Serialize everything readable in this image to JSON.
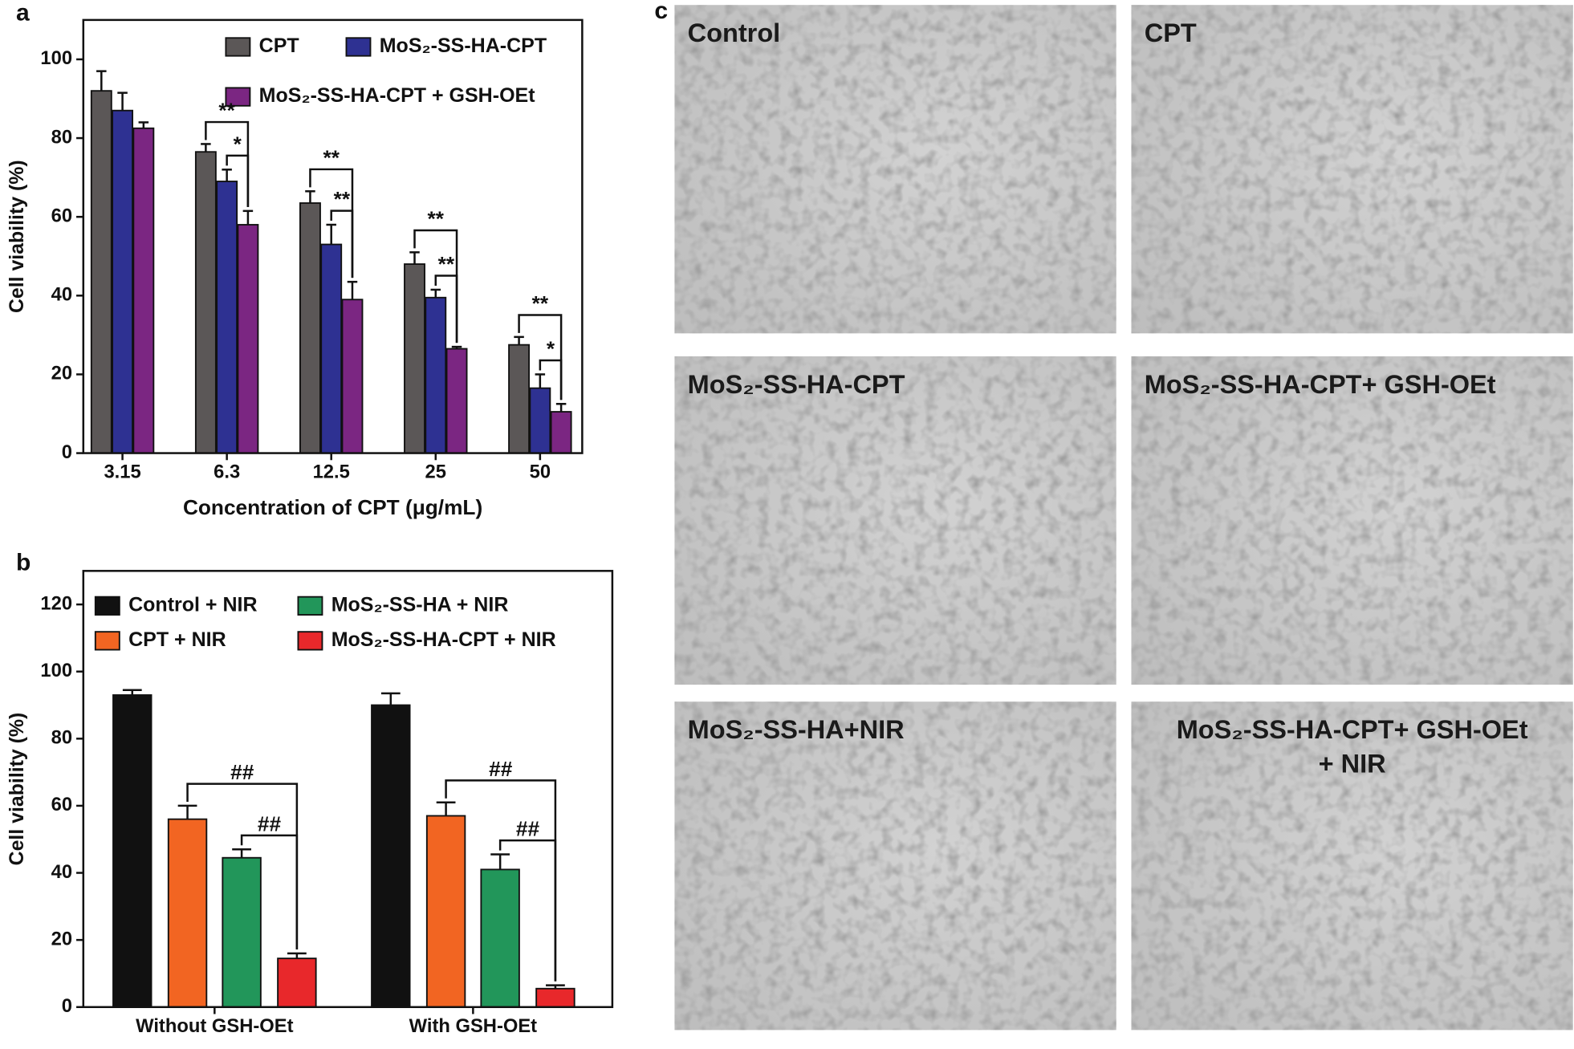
{
  "chart_data": [
    {
      "type": "bar",
      "panel": "a",
      "ylabel": "Cell viability (%)",
      "xlabel": "Concentration of CPT (μg/mL)",
      "categories": [
        "3.15",
        "6.3",
        "12.5",
        "25",
        "50"
      ],
      "series": [
        {
          "name": "CPT",
          "color": "#5b5757",
          "values": [
            92,
            76.5,
            63.5,
            48,
            27.5
          ],
          "errors": [
            5,
            2,
            3,
            3,
            2
          ]
        },
        {
          "name": "MoS₂-SS-HA-CPT",
          "color": "#2e3192",
          "values": [
            87,
            69,
            53,
            39.5,
            16.5
          ],
          "errors": [
            4.5,
            3,
            5,
            2,
            3.5
          ]
        },
        {
          "name": "MoS₂-SS-HA-CPT + GSH-OEt",
          "color": "#7b2682",
          "values": [
            82.5,
            58,
            39,
            26.5,
            10.5
          ],
          "errors": [
            1.5,
            3.5,
            4.5,
            0.5,
            2
          ]
        }
      ],
      "ylim": [
        0,
        110
      ],
      "yticks": [
        0,
        20,
        40,
        60,
        80,
        100
      ],
      "annotations": [
        "**",
        "*",
        "**",
        "**",
        "**",
        "**",
        "**",
        "*"
      ]
    },
    {
      "type": "bar",
      "panel": "b",
      "ylabel": "Cell viability (%)",
      "categories": [
        "Without GSH-OEt",
        "With GSH-OEt"
      ],
      "series": [
        {
          "name": "Control + NIR",
          "color": "#111111",
          "values": [
            93,
            90
          ],
          "errors": [
            1.5,
            3.5
          ]
        },
        {
          "name": "CPT + NIR",
          "color": "#f26522",
          "values": [
            56,
            57
          ],
          "errors": [
            4,
            4
          ]
        },
        {
          "name": "MoS₂-SS-HA + NIR",
          "color": "#22965a",
          "values": [
            44.5,
            41
          ],
          "errors": [
            2.5,
            4.5
          ]
        },
        {
          "name": "MoS₂-SS-HA-CPT + NIR",
          "color": "#e8282b",
          "values": [
            14.5,
            5.5
          ],
          "errors": [
            1.5,
            1
          ]
        }
      ],
      "ylim": [
        0,
        130
      ],
      "yticks": [
        0,
        20,
        40,
        60,
        80,
        100,
        120
      ],
      "annotations": [
        "##",
        "##",
        "##",
        "##"
      ]
    }
  ],
  "panel_c": {
    "label": "c",
    "images": [
      {
        "caption": [
          "Control"
        ]
      },
      {
        "caption": [
          "CPT"
        ]
      },
      {
        "caption": [
          "MoS₂-SS-HA-CPT"
        ]
      },
      {
        "caption": [
          "MoS₂-SS-HA-CPT+ GSH-OEt"
        ]
      },
      {
        "caption": [
          "MoS₂-SS-HA+NIR"
        ]
      },
      {
        "caption": [
          "MoS₂-SS-HA-CPT+ GSH-OEt",
          "+ NIR"
        ]
      }
    ]
  }
}
